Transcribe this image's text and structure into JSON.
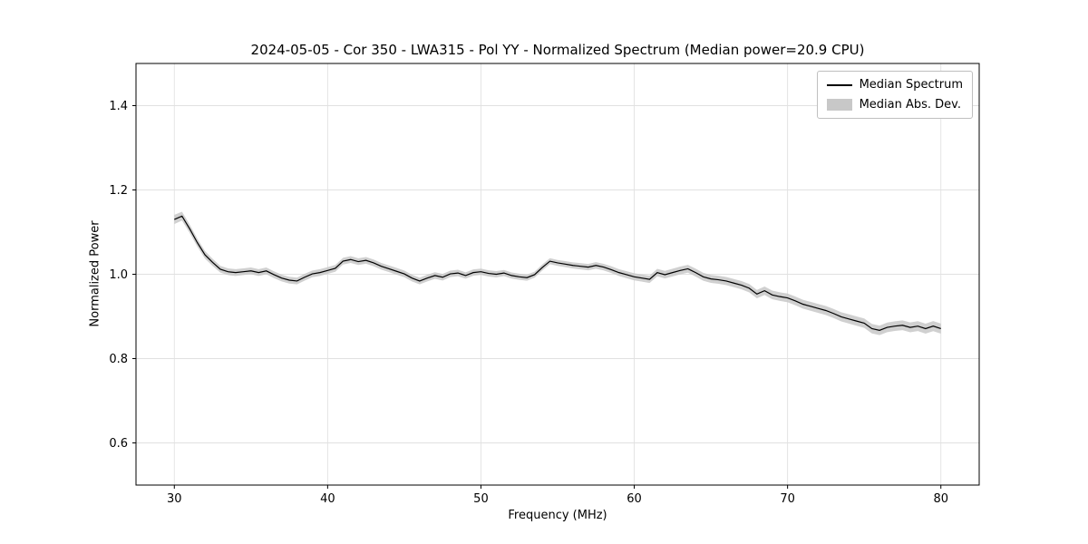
{
  "chart_data": {
    "type": "line",
    "title": "2024-05-05 - Cor 350 - LWA315 - Pol YY - Normalized Spectrum (Median power=20.9 CPU)",
    "xlabel": "Frequency (MHz)",
    "ylabel": "Normalized Power",
    "xlim": [
      27.5,
      82.5
    ],
    "ylim": [
      0.5,
      1.5
    ],
    "xticks": [
      30,
      40,
      50,
      60,
      70,
      80
    ],
    "yticks": [
      0.6,
      0.8,
      1.0,
      1.2,
      1.4
    ],
    "grid": true,
    "colors": {
      "line": "#000000",
      "band": "#c8c8c8",
      "grid": "#e1e1e1",
      "axes": "#000000",
      "background": "#ffffff"
    },
    "legend": {
      "position": "upper right",
      "entries": [
        {
          "label": "Median Spectrum",
          "type": "line",
          "color": "#000000"
        },
        {
          "label": "Median Abs. Dev.",
          "type": "patch",
          "color": "#c8c8c8"
        }
      ]
    },
    "series": [
      {
        "name": "Median Spectrum",
        "color": "#000000",
        "x_start": 30.0,
        "x_step": 0.5,
        "y": [
          1.13,
          1.138,
          1.108,
          1.075,
          1.046,
          1.028,
          1.012,
          1.006,
          1.004,
          1.006,
          1.008,
          1.004,
          1.008,
          0.999,
          0.991,
          0.986,
          0.984,
          0.993,
          1.001,
          1.004,
          1.009,
          1.014,
          1.031,
          1.035,
          1.03,
          1.033,
          1.027,
          1.019,
          1.013,
          1.007,
          1.001,
          0.991,
          0.984,
          0.991,
          0.997,
          0.993,
          1.001,
          1.003,
          0.997,
          1.004,
          1.006,
          1.002,
          1.0,
          1.003,
          0.997,
          0.994,
          0.992,
          0.999,
          1.016,
          1.031,
          1.027,
          1.024,
          1.021,
          1.019,
          1.017,
          1.021,
          1.017,
          1.011,
          1.004,
          0.999,
          0.994,
          0.991,
          0.988,
          1.004,
          0.999,
          1.004,
          1.009,
          1.013,
          1.004,
          0.994,
          0.989,
          0.987,
          0.984,
          0.979,
          0.974,
          0.967,
          0.953,
          0.961,
          0.951,
          0.947,
          0.944,
          0.937,
          0.929,
          0.924,
          0.919,
          0.914,
          0.907,
          0.899,
          0.894,
          0.889,
          0.884,
          0.871,
          0.867,
          0.874,
          0.877,
          0.879,
          0.874,
          0.877,
          0.871,
          0.877,
          0.871
        ]
      }
    ],
    "band": {
      "name": "Median Abs. Dev.",
      "mad_anchors": [
        [
          30,
          0.011
        ],
        [
          33,
          0.008
        ],
        [
          45,
          0.008
        ],
        [
          55,
          0.007
        ],
        [
          62,
          0.009
        ],
        [
          68,
          0.01
        ],
        [
          80,
          0.012
        ]
      ]
    }
  }
}
